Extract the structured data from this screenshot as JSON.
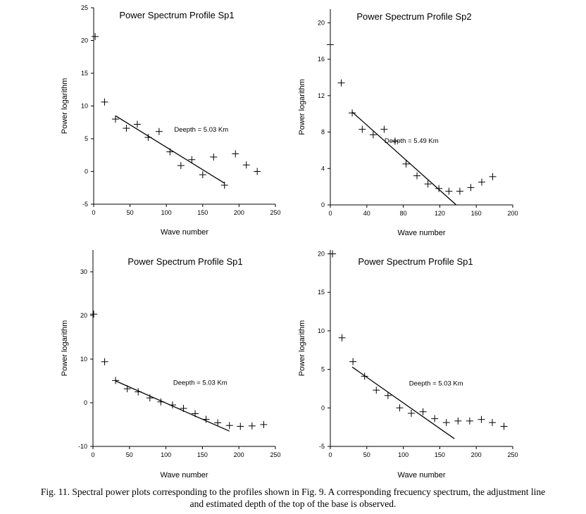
{
  "chart_data": [
    {
      "type": "scatter",
      "title": "Power Spectrum Profile Sp1",
      "xlabel": "Wave number",
      "ylabel": "Power logarithm",
      "xlim": [
        0,
        250
      ],
      "ylim": [
        -5,
        25
      ],
      "xticks": [
        0,
        50,
        100,
        150,
        200,
        250
      ],
      "yticks": [
        -5,
        0,
        5,
        10,
        15,
        20,
        25
      ],
      "points": [
        [
          2,
          20.6
        ],
        [
          15,
          10.6
        ],
        [
          30,
          8.0
        ],
        [
          45,
          6.6
        ],
        [
          60,
          7.2
        ],
        [
          75,
          5.2
        ],
        [
          90,
          6.1
        ],
        [
          105,
          3.0
        ],
        [
          120,
          0.9
        ],
        [
          135,
          1.8
        ],
        [
          150,
          -0.5
        ],
        [
          165,
          2.2
        ],
        [
          180,
          -2.1
        ],
        [
          195,
          2.7
        ],
        [
          210,
          1.0
        ],
        [
          225,
          0.0
        ]
      ],
      "fit_line": [
        [
          30,
          8.5
        ],
        [
          180,
          -1.8
        ]
      ],
      "annotation": "Deepth = 5.03 Km",
      "annotation_at": [
        148,
        6.1
      ]
    },
    {
      "type": "scatter",
      "title": "Power Spectrum Profile Sp2",
      "xlabel": "Wave number",
      "ylabel": "Power logarithm",
      "xlim": [
        0,
        200
      ],
      "ylim": [
        0,
        21.5
      ],
      "xticks": [
        0,
        40,
        80,
        120,
        160,
        200
      ],
      "yticks": [
        0,
        4,
        8,
        12,
        16,
        20
      ],
      "points": [
        [
          0,
          17.6
        ],
        [
          12,
          13.4
        ],
        [
          24,
          10.1
        ],
        [
          35,
          8.3
        ],
        [
          47,
          7.7
        ],
        [
          59,
          8.3
        ],
        [
          71,
          7.0
        ],
        [
          83,
          4.5
        ],
        [
          95,
          3.2
        ],
        [
          107,
          2.3
        ],
        [
          119,
          1.8
        ],
        [
          130,
          1.5
        ],
        [
          142,
          1.5
        ],
        [
          154,
          1.9
        ],
        [
          166,
          2.5
        ],
        [
          178,
          3.1
        ]
      ],
      "fit_line": [
        [
          24,
          10.2
        ],
        [
          138,
          0
        ]
      ],
      "annotation": "Deepth = 5.49 Km",
      "annotation_at": [
        89,
        6.8
      ]
    },
    {
      "type": "scatter",
      "title": "Power Spectrum Profile Sp1",
      "xlabel": "Wave number",
      "ylabel": "Power logarithm",
      "xlim": [
        0,
        250
      ],
      "ylim": [
        -10,
        35
      ],
      "xticks": [
        0,
        50,
        100,
        150,
        200,
        250
      ],
      "yticks": [
        -10,
        0,
        10,
        20,
        30
      ],
      "points": [
        [
          1,
          20.3
        ],
        [
          16,
          9.4
        ],
        [
          31,
          5.1
        ],
        [
          47,
          3.2
        ],
        [
          62,
          2.5
        ],
        [
          78,
          1.1
        ],
        [
          93,
          0.2
        ],
        [
          109,
          -0.5
        ],
        [
          124,
          -1.3
        ],
        [
          140,
          -2.5
        ],
        [
          155,
          -3.8
        ],
        [
          171,
          -4.6
        ],
        [
          187,
          -5.2
        ],
        [
          202,
          -5.4
        ],
        [
          218,
          -5.3
        ],
        [
          234,
          -5.0
        ]
      ],
      "fit_line": [
        [
          31,
          5.0
        ],
        [
          187,
          -6.5
        ]
      ],
      "annotation": "Deepth = 5.03 Km",
      "annotation_at": [
        147,
        4.1
      ]
    },
    {
      "type": "scatter",
      "title": "Power Spectrum Profile Sp1",
      "xlabel": "Wave number",
      "ylabel": "Power logarithm",
      "xlim": [
        0,
        250
      ],
      "ylim": [
        -5,
        20.5
      ],
      "xticks": [
        0,
        50,
        100,
        150,
        200,
        250
      ],
      "yticks": [
        -5,
        0,
        5,
        10,
        15,
        20
      ],
      "points": [
        [
          3,
          20.0
        ],
        [
          16,
          9.1
        ],
        [
          31,
          6.0
        ],
        [
          47,
          4.1
        ],
        [
          63,
          2.3
        ],
        [
          79,
          1.6
        ],
        [
          95,
          0.0
        ],
        [
          111,
          -0.7
        ],
        [
          127,
          -0.5
        ],
        [
          143,
          -1.4
        ],
        [
          159,
          -1.9
        ],
        [
          175,
          -1.7
        ],
        [
          191,
          -1.7
        ],
        [
          207,
          -1.5
        ],
        [
          222,
          -1.9
        ],
        [
          238,
          -2.4
        ]
      ],
      "fit_line": [
        [
          30,
          5.3
        ],
        [
          170,
          -4.0
        ]
      ],
      "annotation": "Deepth = 5.03 Km",
      "annotation_at": [
        145,
        2.9
      ]
    }
  ],
  "caption": {
    "line1": "Fig. 11. Spectral power plots corresponding to the profiles shown in Fig. 9. A corresponding frecuency spectrum, the adjustment line",
    "line2": "and estimated depth of the top of the base is observed."
  }
}
